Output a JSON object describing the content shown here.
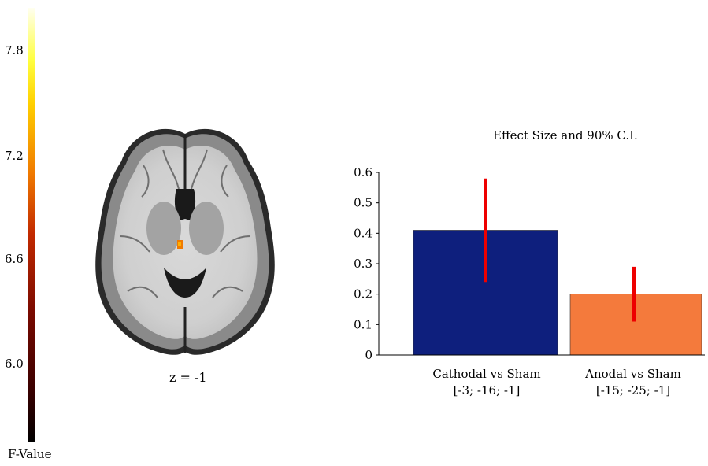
{
  "colorbar": {
    "label": "F-Value",
    "ticks": [
      "7.8",
      "7.2",
      "6.6",
      "6.0"
    ],
    "colors": [
      "#000000",
      "#7a0a00",
      "#f07a00",
      "#ffff40",
      "#fffff0"
    ]
  },
  "brain": {
    "slice_label": "z = -1"
  },
  "chart_data": {
    "type": "bar",
    "title": "Effect Size and 90% C.I.",
    "categories": [
      "Cathodal vs Sham",
      "Anodal vs Sham"
    ],
    "category_sublabels": [
      "[-3; -16; -1]",
      "[-15; -25; -1]"
    ],
    "values": [
      0.41,
      0.2
    ],
    "ci_low": [
      0.24,
      0.11
    ],
    "ci_high": [
      0.58,
      0.29
    ],
    "bar_colors": [
      "#0e1f7d",
      "#f47a3c"
    ],
    "error_color": "#ee0000",
    "ylim": [
      0,
      0.6
    ],
    "yticks": [
      "0",
      "0.1",
      "0.2",
      "0.3",
      "0.4",
      "0.5",
      "0.6"
    ],
    "xlabel": "",
    "ylabel": "",
    "grid": false,
    "legend": "none"
  }
}
